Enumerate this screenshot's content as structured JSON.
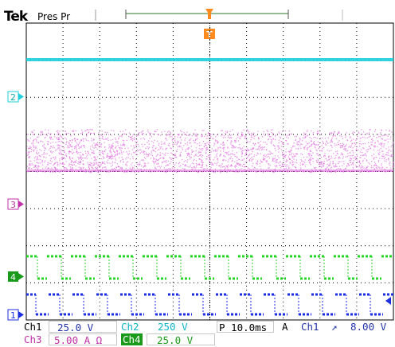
{
  "header": {
    "brand": "Tek",
    "acq_state": "Pres Pr"
  },
  "screen": {
    "trigger_marker": "T",
    "channel_markers": {
      "ch1": "1",
      "ch2": "2",
      "ch3": "3",
      "ch4": "4"
    },
    "colors": {
      "ch1": "#1a2ee0",
      "ch2": "#1cd0dc",
      "ch3": "#e070e0",
      "ch4": "#28d628",
      "trigger": "#ff8a1e",
      "grid": "#000000"
    }
  },
  "readout": {
    "ch1_label": "Ch1",
    "ch1_scale": "25.0 V",
    "ch2_label": "Ch2",
    "ch2_scale": "250 V",
    "timebase": "P 10.0ms",
    "trig_mode": "A",
    "trig_source": "Ch1",
    "trig_slope": "↗",
    "trig_level": "8.00 V",
    "ch3_label": "Ch3",
    "ch3_scale": "5.00 A Ω",
    "ch4_label": "Ch4",
    "ch4_scale": "25.0 V"
  }
}
